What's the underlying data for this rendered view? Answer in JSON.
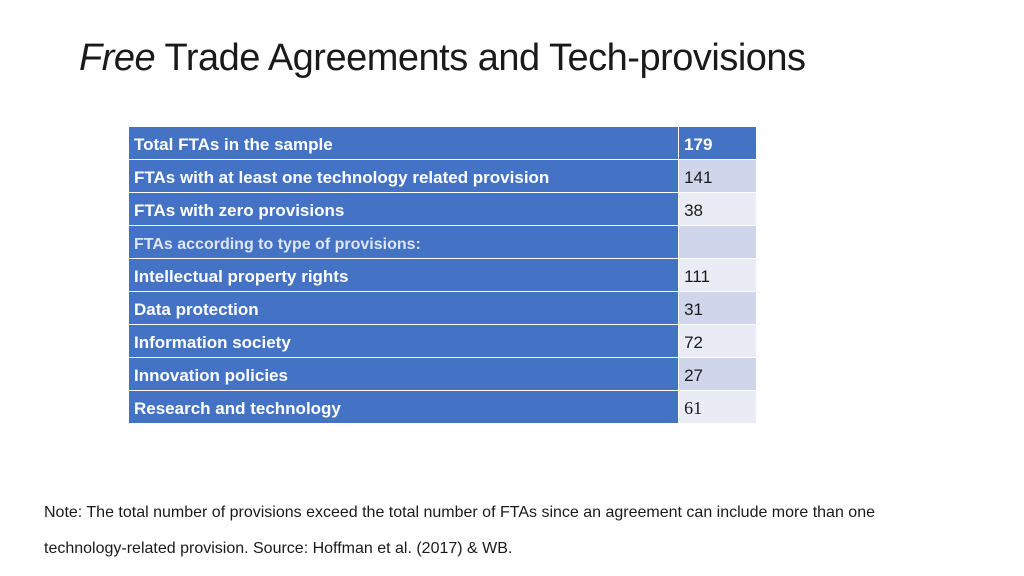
{
  "title": {
    "italic": "Free",
    "rest": " Trade Agreements and Tech-provisions"
  },
  "table": {
    "rows": [
      {
        "label": "Total FTAs in the sample",
        "value": "179"
      },
      {
        "label": "FTAs with at least one technology related provision",
        "value": "141"
      },
      {
        "label": "FTAs with zero provisions",
        "value": "38"
      },
      {
        "label": "FTAs according to type of provisions:",
        "value": ""
      },
      {
        "label": "Intellectual property rights",
        "value": "111"
      },
      {
        "label": "Data protection",
        "value": "31"
      },
      {
        "label": "Information society",
        "value": "72"
      },
      {
        "label": "Innovation policies",
        "value": "27"
      },
      {
        "label": "Research and technology",
        "value": "61"
      }
    ]
  },
  "note": {
    "line1": "Note: The total number of provisions exceed the total number of FTAs since an agreement can include more than one",
    "line2": "technology-related provision. Source: Hoffman et al. (2017) & WB."
  },
  "colors": {
    "header_blue": "#4472c4",
    "stripe_dark": "#cfd5ea",
    "stripe_light": "#e9ebf5"
  }
}
